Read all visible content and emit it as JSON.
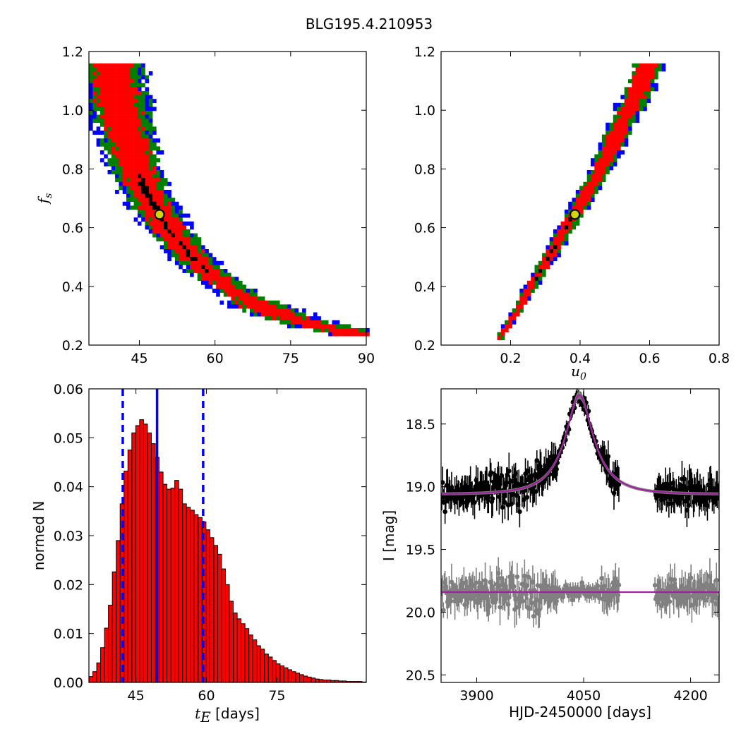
{
  "figure": {
    "title": "BLG195.4.210953"
  },
  "chart_data": [
    {
      "type": "heatmap",
      "panel": "top-left",
      "xlabel": "",
      "ylabel": "f_s",
      "xlim": [
        35,
        90
      ],
      "ylim": [
        0.2,
        1.2
      ],
      "xticks": [
        45,
        60,
        75,
        90
      ],
      "yticks": [
        0.2,
        0.4,
        0.6,
        0.8,
        1.0,
        1.2
      ],
      "xtick_labels": [
        "45",
        "60",
        "75",
        "90"
      ],
      "ytick_labels": [
        "0.2",
        "0.4",
        "0.6",
        "0.8",
        "1.0",
        "1.2"
      ],
      "levels": [
        "black",
        "red",
        "green",
        "blue"
      ],
      "best_fit": {
        "x": 49,
        "y": 0.645
      },
      "ridge": [
        [
          39.5,
          1.16
        ],
        [
          40.5,
          1.06
        ],
        [
          42,
          0.94
        ],
        [
          44,
          0.82
        ],
        [
          46,
          0.73
        ],
        [
          49,
          0.645
        ],
        [
          52,
          0.57
        ],
        [
          56,
          0.49
        ],
        [
          60,
          0.43
        ],
        [
          65,
          0.37
        ],
        [
          70,
          0.325
        ],
        [
          76,
          0.285
        ],
        [
          82,
          0.26
        ],
        [
          87,
          0.245
        ]
      ]
    },
    {
      "type": "heatmap",
      "panel": "top-right",
      "xlabel": "u_0",
      "ylabel": "",
      "xlim": [
        0.0,
        0.8
      ],
      "ylim": [
        0.2,
        1.2
      ],
      "xticks": [
        0.2,
        0.4,
        0.6,
        0.8
      ],
      "yticks": [
        0.2,
        0.4,
        0.6,
        0.8,
        1.0,
        1.2
      ],
      "xtick_labels": [
        "0.2",
        "0.4",
        "0.6",
        "0.8"
      ],
      "ytick_labels": [
        "0.2",
        "0.4",
        "0.6",
        "0.8",
        "1.0",
        "1.2"
      ],
      "levels": [
        "black",
        "red",
        "green",
        "blue"
      ],
      "best_fit": {
        "x": 0.385,
        "y": 0.645
      },
      "ridge": [
        [
          0.165,
          0.22
        ],
        [
          0.21,
          0.3
        ],
        [
          0.26,
          0.4
        ],
        [
          0.31,
          0.5
        ],
        [
          0.36,
          0.6
        ],
        [
          0.41,
          0.7
        ],
        [
          0.46,
          0.8
        ],
        [
          0.5,
          0.9
        ],
        [
          0.54,
          1.0
        ],
        [
          0.58,
          1.1
        ],
        [
          0.6,
          1.16
        ]
      ]
    },
    {
      "type": "bar",
      "panel": "bottom-left",
      "xlabel": "t_E [days]",
      "ylabel": "normed N",
      "xlim": [
        35,
        94
      ],
      "ylim": [
        0,
        0.06
      ],
      "xticks": [
        45,
        60,
        75
      ],
      "yticks": [
        0,
        0.01,
        0.02,
        0.03,
        0.04,
        0.05,
        0.06
      ],
      "xtick_labels": [
        "45",
        "60",
        "75"
      ],
      "ytick_labels": [
        "0.00",
        "0.01",
        "0.02",
        "0.03",
        "0.04",
        "0.05",
        "0.06"
      ],
      "bin_start": 35,
      "bin_width": 0.83,
      "values": [
        0.0012,
        0.0022,
        0.004,
        0.0071,
        0.0111,
        0.0158,
        0.0226,
        0.029,
        0.0365,
        0.0432,
        0.0475,
        0.051,
        0.0525,
        0.0537,
        0.0528,
        0.051,
        0.0488,
        0.046,
        0.043,
        0.0405,
        0.0395,
        0.0397,
        0.0413,
        0.0395,
        0.0365,
        0.0358,
        0.0352,
        0.0343,
        0.0337,
        0.0328,
        0.0312,
        0.0296,
        0.028,
        0.0262,
        0.0232,
        0.02,
        0.0166,
        0.0142,
        0.013,
        0.012,
        0.011,
        0.0097,
        0.0087,
        0.0075,
        0.0068,
        0.0058,
        0.0052,
        0.0045,
        0.0038,
        0.0034,
        0.003,
        0.0026,
        0.0022,
        0.0019,
        0.0016,
        0.0013,
        0.0011,
        0.0009,
        0.0007,
        0.0006,
        0.0005,
        0.0005,
        0.0004,
        0.0004,
        0.0003,
        0.0003,
        0.0002,
        0.0002,
        0.0002,
        0.0002,
        0.0001
      ],
      "median_line": 49.5,
      "interval_lines": [
        42.2,
        59.3
      ]
    },
    {
      "type": "scatter",
      "panel": "bottom-right",
      "xlabel": "HJD-2450000 [days]",
      "ylabel": "I [mag]",
      "xlim": [
        3850,
        4240
      ],
      "ylim": [
        20.56,
        18.22
      ],
      "xticks": [
        3900,
        4050,
        4200
      ],
      "yticks": [
        18.5,
        19.0,
        19.5,
        20.0,
        20.5
      ],
      "xtick_labels": [
        "3900",
        "4050",
        "4200"
      ],
      "ytick_labels": [
        "18.5",
        "19.0",
        "19.5",
        "20.0",
        "20.5"
      ],
      "model": {
        "t0": 4044,
        "baseline": 19.06,
        "peak": 18.27,
        "tE": 50,
        "u0": 0.385
      },
      "residual_baseline": 19.84,
      "gap": [
        4100,
        4150
      ]
    }
  ]
}
